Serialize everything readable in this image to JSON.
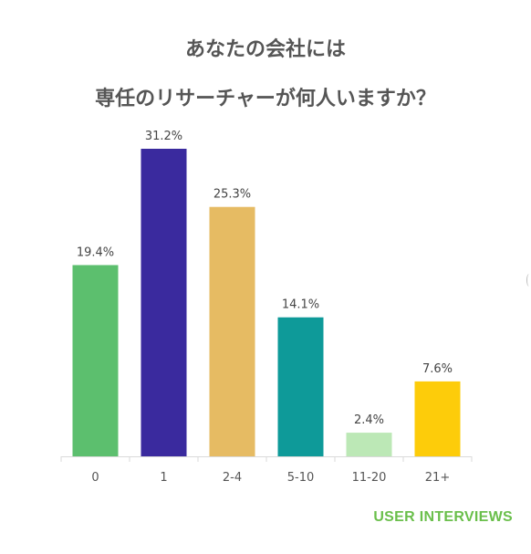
{
  "chart_data": {
    "type": "bar",
    "title_lines": [
      "あなたの会社には",
      "専任のリサーチャーが何人いますか？"
    ],
    "categories": [
      "0",
      "1",
      "2-4",
      "5-10",
      "11-20",
      "21+"
    ],
    "values": [
      19.4,
      31.2,
      25.3,
      14.1,
      2.4,
      7.6
    ],
    "value_labels": [
      "19.4%",
      "31.2%",
      "25.3%",
      "14.1%",
      "2.4%",
      "7.6%"
    ],
    "colors": [
      "#5cbf6e",
      "#3a2a9e",
      "#e6bb63",
      "#0e9a99",
      "#bce8b6",
      "#fdcc0a"
    ],
    "ylim": [
      0,
      31.2
    ],
    "grid": false,
    "legend": "none"
  },
  "brand": "USER INTERVIEWS"
}
